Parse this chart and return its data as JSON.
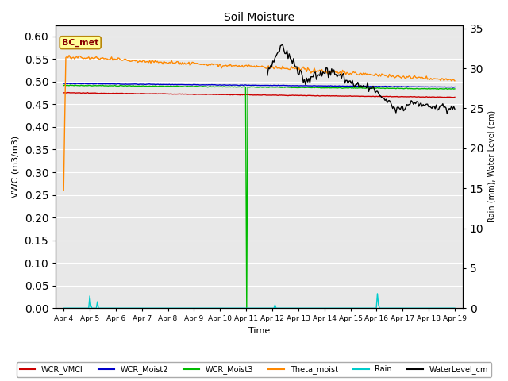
{
  "title": "Soil Moisture",
  "xlabel": "Time",
  "ylabel_left": "VWC (m3/m3)",
  "ylabel_right": "Rain (mm), Water Level (cm)",
  "ylim_left": [
    0.0,
    0.625
  ],
  "ylim_right": [
    0,
    35.416666
  ],
  "yticks_left": [
    0.0,
    0.05,
    0.1,
    0.15,
    0.2,
    0.25,
    0.3,
    0.35,
    0.4,
    0.45,
    0.5,
    0.55,
    0.6
  ],
  "yticks_right": [
    0,
    5,
    10,
    15,
    20,
    25,
    30,
    35
  ],
  "bg_color": "#e8e8e8",
  "box_label": "BC_met",
  "box_color": "#ffff99",
  "box_edge_color": "#b8860b",
  "legend_entries": [
    "WCR_VMCl",
    "WCR_Moist2",
    "WCR_Moist3",
    "Theta_moist",
    "Rain",
    "WaterLevel_cm"
  ],
  "legend_colors": [
    "#cc0000",
    "#0000cc",
    "#00bb00",
    "#ff8800",
    "#00cccc",
    "#000000"
  ],
  "figsize": [
    6.4,
    4.8
  ],
  "dpi": 100
}
